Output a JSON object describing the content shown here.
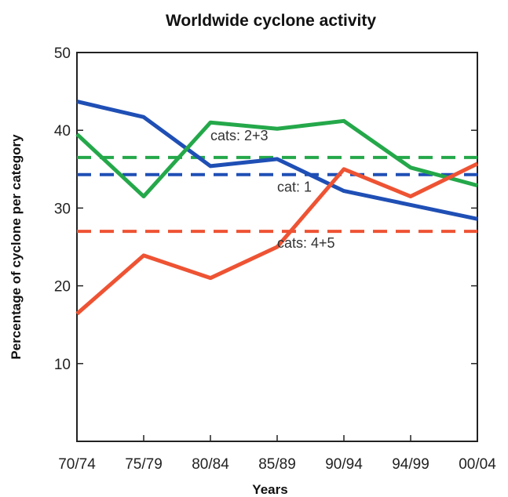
{
  "chart_data": {
    "type": "line",
    "title": "Worldwide cyclone activity",
    "xlabel": "Years",
    "ylabel": "Percentage of cyclone per category",
    "categories": [
      "70/74",
      "75/79",
      "80/84",
      "85/89",
      "90/94",
      "94/99",
      "00/04"
    ],
    "yticks": [
      10,
      20,
      30,
      40,
      50
    ],
    "ylim": [
      0,
      50
    ],
    "grid": false,
    "series": [
      {
        "values": [
          43.7,
          41.7,
          35.4,
          36.3,
          32.2,
          30.4,
          28.6
        ],
        "color": "#1f4fb5"
      },
      {
        "values": [
          39.5,
          31.5,
          41.0,
          40.2,
          41.2,
          35.2,
          32.9
        ],
        "color": "#24a84a"
      },
      {
        "values": [
          16.4,
          23.9,
          21.0,
          25.0,
          35.0,
          31.5,
          35.7
        ],
        "color": "#ee5333"
      }
    ],
    "reference_lines": [
      {
        "y": 36.5,
        "color": "#24a84a",
        "label": "cats: 2+3",
        "label_x": "80/84",
        "label_y": 38.7
      },
      {
        "y": 34.3,
        "color": "#1f4fb5",
        "label": "cat: 1",
        "label_x": "85/89",
        "label_y": 32.1
      },
      {
        "y": 27.0,
        "color": "#ee5333",
        "label": "cats: 4+5",
        "label_x": "85/89",
        "label_y": 24.9
      }
    ]
  }
}
